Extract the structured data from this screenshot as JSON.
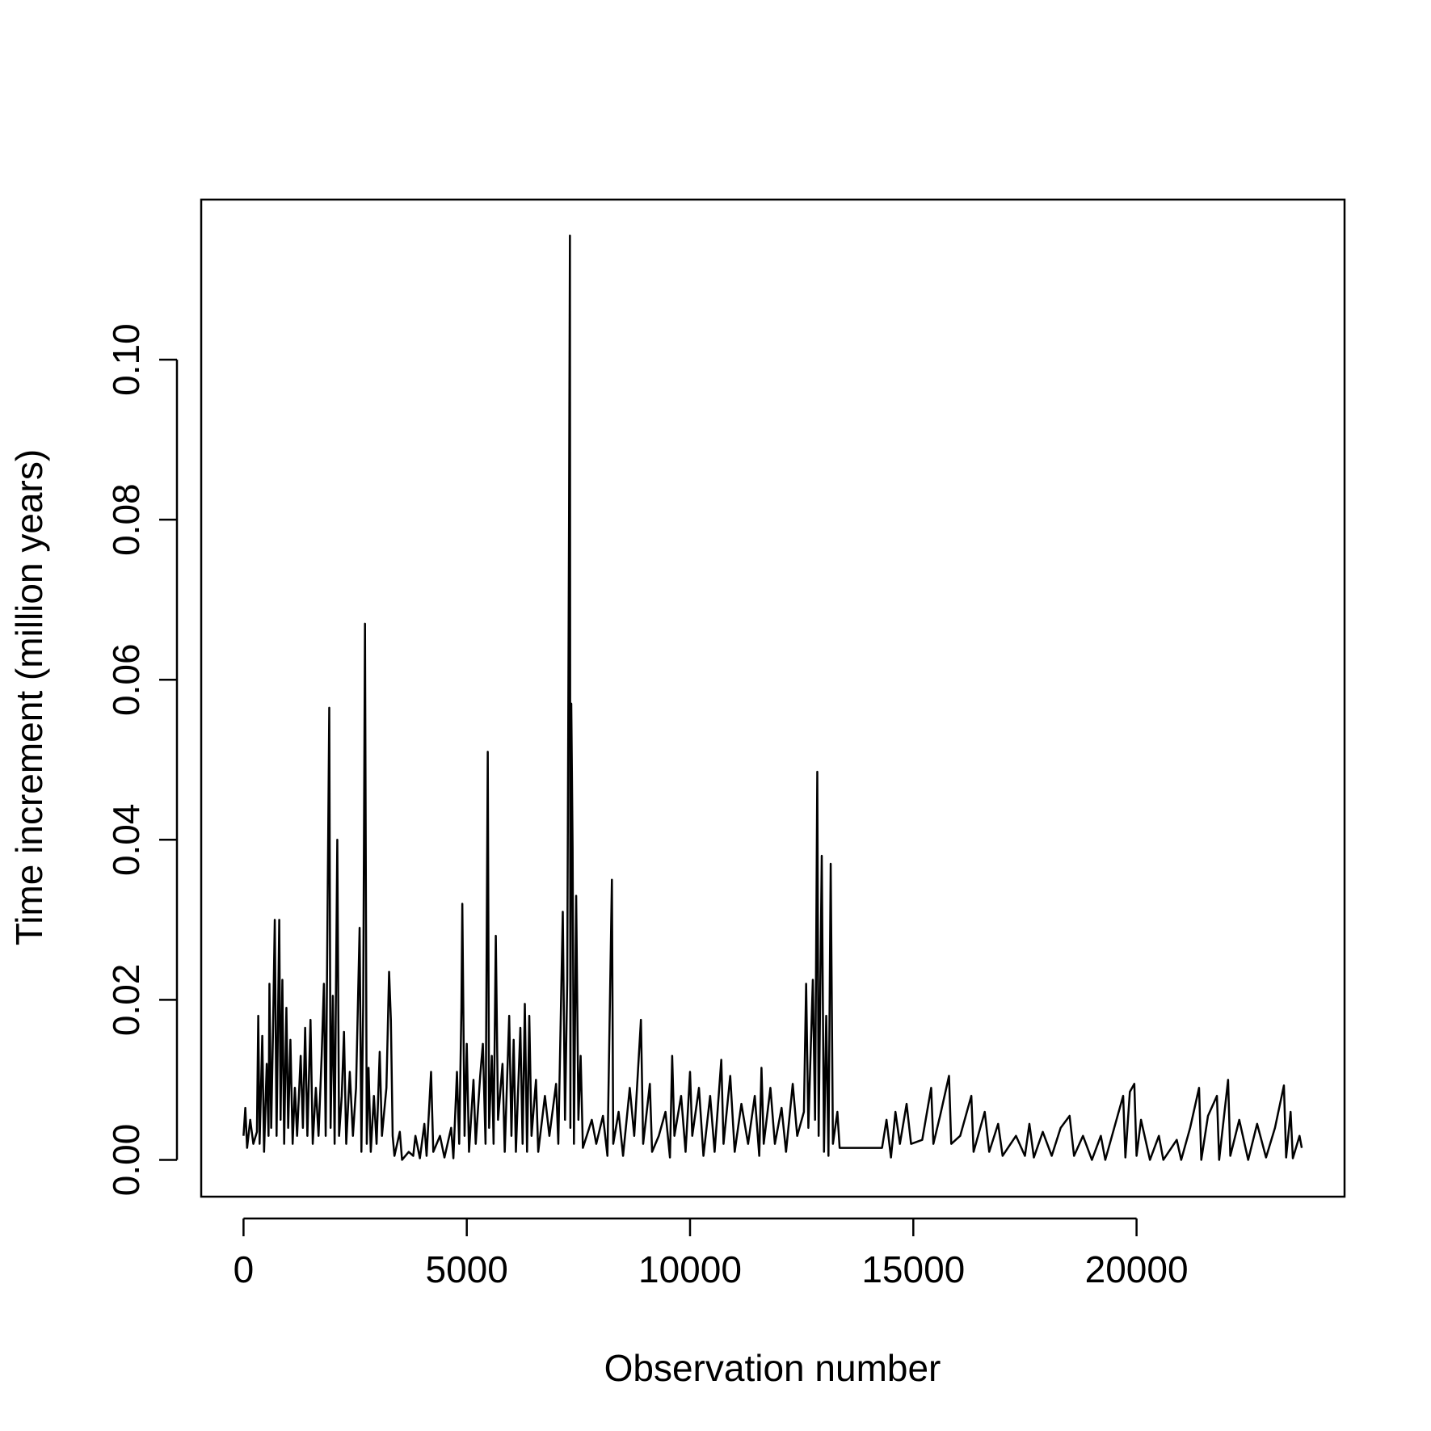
{
  "chart_data": {
    "type": "line",
    "x_label": "Observation number",
    "y_label": "Time increment (million years)",
    "color": "#000000",
    "xlim": [
      -948,
      24658
    ],
    "ylim": [
      -0.0046,
      0.12
    ],
    "xticks": [
      0,
      5000,
      10000,
      15000,
      20000
    ],
    "yticks": [
      {
        "value": 0,
        "label": "0.00"
      },
      {
        "value": 0.02,
        "label": "0.02"
      },
      {
        "value": 0.04,
        "label": "0.04"
      },
      {
        "value": 0.06,
        "label": "0.06"
      },
      {
        "value": 0.08,
        "label": "0.08"
      },
      {
        "value": 0.1,
        "label": "0.10"
      }
    ],
    "x": [
      0,
      40,
      80,
      150,
      220,
      300,
      330,
      360,
      420,
      460,
      520,
      560,
      580,
      620,
      660,
      700,
      740,
      800,
      830,
      870,
      910,
      960,
      1000,
      1050,
      1100,
      1150,
      1200,
      1280,
      1330,
      1380,
      1430,
      1500,
      1550,
      1620,
      1680,
      1750,
      1800,
      1840,
      1920,
      1950,
      2000,
      2040,
      2100,
      2140,
      2200,
      2250,
      2300,
      2380,
      2450,
      2520,
      2600,
      2640,
      2680,
      2720,
      2760,
      2800,
      2850,
      2920,
      2980,
      3050,
      3100,
      3200,
      3260,
      3300,
      3340,
      3380,
      3500,
      3550,
      3700,
      3800,
      3850,
      3950,
      4050,
      4100,
      4200,
      4250,
      4400,
      4500,
      4650,
      4700,
      4780,
      4830,
      4880,
      4900,
      4950,
      5000,
      5050,
      5150,
      5200,
      5300,
      5360,
      5420,
      5470,
      5500,
      5560,
      5600,
      5650,
      5700,
      5800,
      5850,
      5950,
      6000,
      6050,
      6100,
      6200,
      6250,
      6300,
      6350,
      6400,
      6450,
      6550,
      6600,
      6750,
      6850,
      7000,
      7050,
      7150,
      7200,
      7250,
      7290,
      7310,
      7320,
      7340,
      7370,
      7400,
      7450,
      7500,
      7550,
      7600,
      7800,
      7900,
      8050,
      8150,
      8250,
      8280,
      8400,
      8500,
      8650,
      8750,
      8900,
      8950,
      9100,
      9150,
      9300,
      9450,
      9550,
      9600,
      9650,
      9800,
      9900,
      10000,
      10050,
      10200,
      10300,
      10450,
      10550,
      10700,
      10750,
      10900,
      11000,
      11150,
      11300,
      11450,
      11550,
      11600,
      11650,
      11800,
      11900,
      12050,
      12150,
      12300,
      12400,
      12550,
      12600,
      12650,
      12750,
      12800,
      12850,
      12880,
      12950,
      13000,
      13050,
      13100,
      13150,
      13200,
      13300,
      13350,
      14300,
      14400,
      14500,
      14600,
      14700,
      14850,
      14950,
      15200,
      15400,
      15450,
      15600,
      15800,
      15850,
      16050,
      16300,
      16350,
      16600,
      16700,
      16900,
      17000,
      17300,
      17500,
      17600,
      17700,
      17900,
      18100,
      18300,
      18500,
      18600,
      18800,
      19000,
      19200,
      19300,
      19500,
      19700,
      19750,
      19850,
      19950,
      20000,
      20100,
      20300,
      20500,
      20600,
      20900,
      21000,
      21200,
      21400,
      21450,
      21600,
      21800,
      21850,
      22050,
      22100,
      22300,
      22500,
      22700,
      22900,
      23100,
      23300,
      23350,
      23450,
      23500,
      23650,
      23700
    ],
    "values": [
      0.003,
      0.0065,
      0.0015,
      0.005,
      0.002,
      0.0035,
      0.018,
      0.002,
      0.0155,
      0.001,
      0.012,
      0.003,
      0.022,
      0.004,
      0.016,
      0.03,
      0.003,
      0.03,
      0.005,
      0.0225,
      0.002,
      0.019,
      0.004,
      0.015,
      0.002,
      0.009,
      0.003,
      0.013,
      0.004,
      0.0165,
      0.003,
      0.0175,
      0.002,
      0.009,
      0.003,
      0.013,
      0.022,
      0.003,
      0.0565,
      0.004,
      0.0205,
      0.002,
      0.04,
      0.003,
      0.008,
      0.016,
      0.002,
      0.011,
      0.003,
      0.009,
      0.029,
      0.001,
      0.0195,
      0.067,
      0.002,
      0.0115,
      0.001,
      0.008,
      0.002,
      0.0135,
      0.003,
      0.009,
      0.0235,
      0.0175,
      0.003,
      0.0005,
      0.0035,
      0,
      0.001,
      0.0005,
      0.003,
      0.0002,
      0.0045,
      0.0005,
      0.011,
      0.001,
      0.003,
      0.0003,
      0.004,
      0.0002,
      0.011,
      0.002,
      0.019,
      0.032,
      0.003,
      0.0145,
      0.001,
      0.01,
      0.002,
      0.0105,
      0.0145,
      0.002,
      0.051,
      0.004,
      0.013,
      0.002,
      0.028,
      0.005,
      0.012,
      0.001,
      0.018,
      0.003,
      0.015,
      0.001,
      0.0165,
      0.002,
      0.0195,
      0.001,
      0.018,
      0.003,
      0.01,
      0.001,
      0.008,
      0.003,
      0.0095,
      0.002,
      0.031,
      0.005,
      0.0225,
      0.08,
      0.1155,
      0.004,
      0.057,
      0.039,
      0.002,
      0.033,
      0.005,
      0.013,
      0.0015,
      0.005,
      0.002,
      0.0055,
      0.0005,
      0.035,
      0.002,
      0.006,
      0.0005,
      0.009,
      0.003,
      0.0175,
      0.002,
      0.0095,
      0.001,
      0.003,
      0.006,
      0.0003,
      0.013,
      0.003,
      0.008,
      0.001,
      0.011,
      0.003,
      0.009,
      0.0005,
      0.008,
      0.001,
      0.0125,
      0.002,
      0.0105,
      0.001,
      0.007,
      0.002,
      0.008,
      0.0005,
      0.0115,
      0.002,
      0.009,
      0.002,
      0.0065,
      0.001,
      0.0095,
      0.003,
      0.006,
      0.022,
      0.004,
      0.0225,
      0.005,
      0.0485,
      0.003,
      0.038,
      0.001,
      0.018,
      0.0005,
      0.037,
      0.002,
      0.006,
      0.0015,
      0.0015,
      0.005,
      0.0003,
      0.006,
      0.002,
      0.007,
      0.002,
      0.0025,
      0.009,
      0.002,
      0.0055,
      0.0105,
      0.002,
      0.003,
      0.008,
      0.001,
      0.006,
      0.001,
      0.0045,
      0.0005,
      0.003,
      0.0005,
      0.0045,
      0.0003,
      0.0035,
      0.0005,
      0.004,
      0.0055,
      0.0005,
      0.003,
      0,
      0.003,
      0,
      0.004,
      0.008,
      0.0003,
      0.0085,
      0.0095,
      0.0005,
      0.005,
      0,
      0.003,
      0,
      0.0025,
      0,
      0.004,
      0.009,
      0,
      0.0055,
      0.008,
      0,
      0.01,
      0.0005,
      0.005,
      0,
      0.0045,
      0.0003,
      0.004,
      0.0093,
      0.0003,
      0.006,
      0.0002,
      0.003,
      0.0015
    ]
  }
}
